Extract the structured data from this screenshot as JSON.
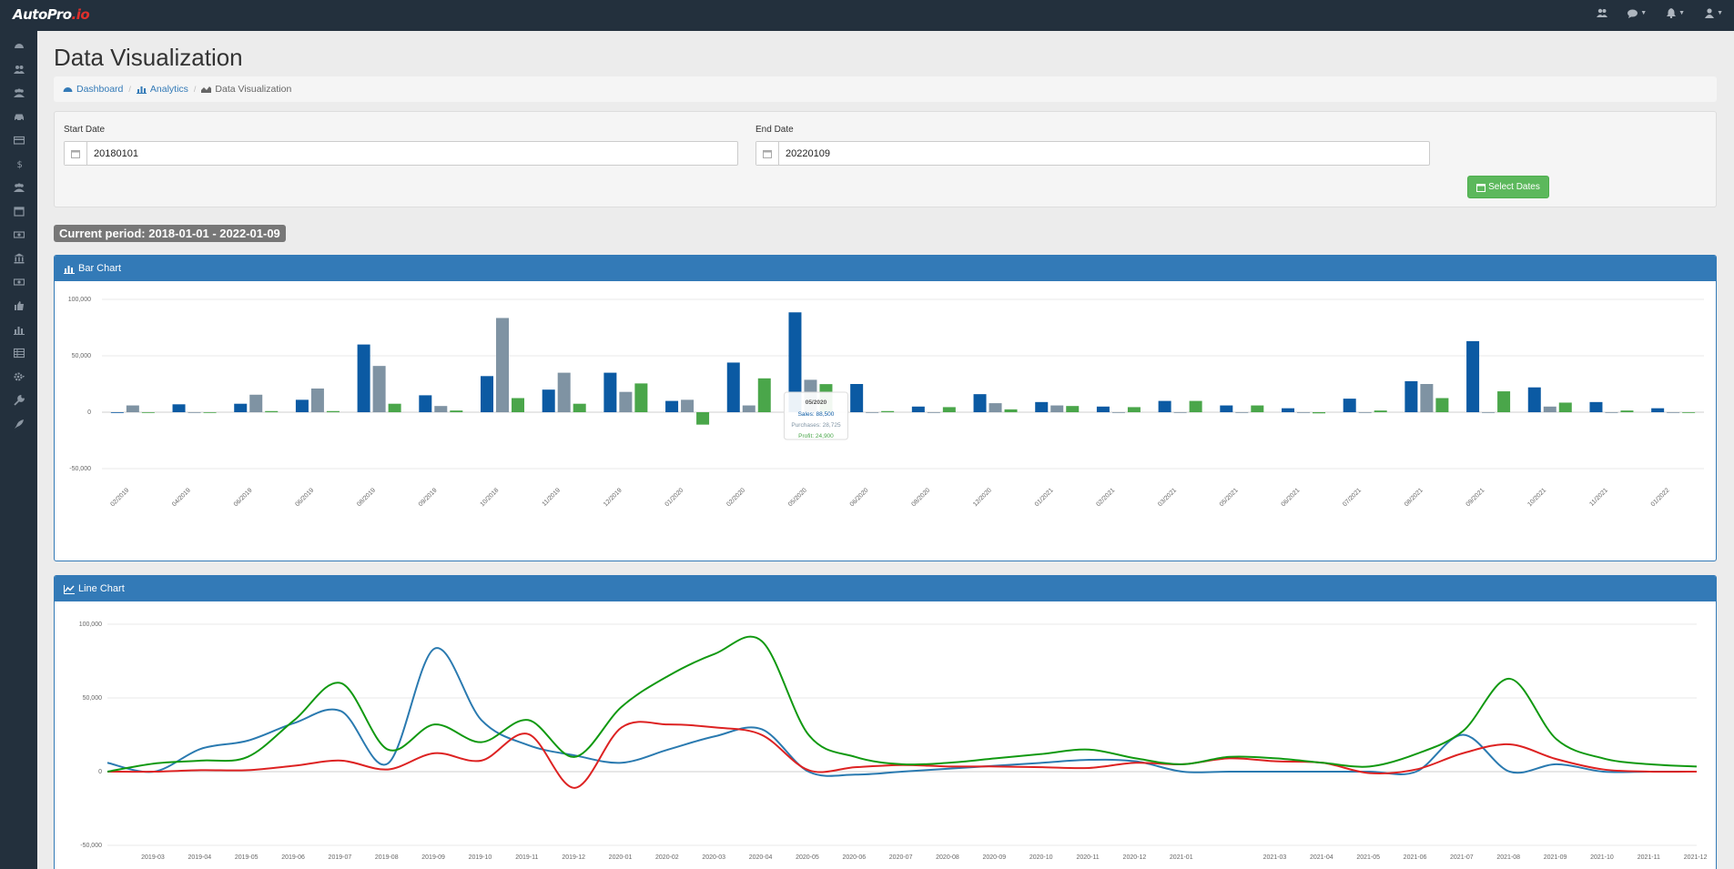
{
  "app": {
    "logo_main": "AutoPro",
    "logo_accent": ".io"
  },
  "topbar": {
    "icons": [
      "users-icon",
      "chat-icon",
      "bell-icon",
      "user-icon"
    ]
  },
  "sidebar": {
    "icons": [
      "dashboard-icon",
      "users-icon",
      "group-icon",
      "car-icon",
      "card-icon",
      "dollar-icon",
      "group-icon",
      "calendar-icon",
      "money-icon",
      "bank-icon",
      "money-icon",
      "thumbs-up-icon",
      "bar-chart-icon",
      "table-icon",
      "gear-icon",
      "wrench-icon",
      "rocket-icon"
    ]
  },
  "page": {
    "title": "Data Visualization",
    "breadcrumb": [
      "Dashboard",
      "Analytics",
      "Data Visualization"
    ]
  },
  "filters": {
    "start_label": "Start Date",
    "start_value": "20180101",
    "end_label": "End Date",
    "end_value": "20220109",
    "select_button": "Select Dates"
  },
  "period": {
    "text": "Current period: 2018-01-01 - 2022-01-09"
  },
  "colors": {
    "primary": "#337ab7",
    "success": "#5cb85c",
    "sidebar": "#23303d",
    "bar_sales": "#0b5aa3",
    "bar_purchases": "#7f93a3",
    "bar_profit": "#4aa64a",
    "line_sales": "#2a7ab0",
    "line_purchases": "#dd2222",
    "line_profit": "#119911"
  },
  "bar_chart": {
    "title": "Bar Chart",
    "tooltip": {
      "title": "05/2020",
      "lines": [
        "Sales: 88,500",
        "Purchases: 28,725",
        "Profit: 24,900"
      ]
    }
  },
  "line_chart": {
    "title": "Line Chart"
  },
  "chart_data": [
    {
      "type": "bar",
      "title": "Bar Chart",
      "ylim": [
        -50000,
        100000
      ],
      "y_ticks": [
        "100,000",
        "50,000",
        "0",
        "-50,000"
      ],
      "x_labels": [
        "02/2019",
        "04/2019",
        "06/2019",
        "06/2019",
        "08/2019",
        "09/2019",
        "10/2018",
        "11/2019",
        "12/2019",
        "01/2020",
        "02/2020",
        "05/2020",
        "06/2020",
        "08/2020",
        "12/2020",
        "01/2021",
        "02/2021",
        "03/2021",
        "05/2021",
        "06/2021",
        "07/2021",
        "08/2021",
        "09/2021",
        "10/2021",
        "11/2021",
        "01/2022"
      ],
      "series": [
        {
          "name": "Sales",
          "values": [
            0,
            7000,
            7500,
            11000,
            60000,
            15000,
            32000,
            20000,
            35000,
            10000,
            44000,
            88500,
            25000,
            5000,
            16000,
            9000,
            5000,
            10000,
            6000,
            3500,
            12000,
            27500,
            63000,
            22000,
            9000,
            3500
          ]
        },
        {
          "name": "Purchases",
          "values": [
            6000,
            0,
            15500,
            21000,
            41000,
            5500,
            83500,
            35000,
            18000,
            11000,
            6000,
            28725,
            0,
            0,
            8000,
            6000,
            0,
            0,
            0,
            0,
            0,
            25000,
            0,
            5000,
            0,
            0
          ]
        },
        {
          "name": "Profit",
          "values": [
            0,
            0,
            1000,
            1000,
            7500,
            1500,
            12500,
            7500,
            25500,
            -11000,
            30000,
            24900,
            1000,
            4500,
            2500,
            5500,
            4500,
            10000,
            6000,
            -1000,
            1500,
            12500,
            18500,
            8500,
            1500,
            0
          ]
        }
      ]
    },
    {
      "type": "line",
      "title": "Line Chart",
      "ylim": [
        -50000,
        100000
      ],
      "y_ticks": [
        "100,000",
        "50,000",
        "0",
        "-50,000"
      ],
      "x": [
        "2019-03",
        "2019-04",
        "2019-05",
        "2019-06",
        "2019-07",
        "2019-08",
        "2019-09",
        "2019-10",
        "2019-11",
        "2019-12",
        "2020-01",
        "2020-02",
        "2020-03",
        "2020-04",
        "2020-05",
        "2020-06",
        "2020-07",
        "2020-08",
        "2020-09",
        "2020-10",
        "2020-11",
        "2020-12",
        "2021-01",
        "",
        "2021-03",
        "2021-04",
        "2021-05",
        "2021-06",
        "2021-07",
        "2021-08",
        "2021-09",
        "2021-10",
        "2021-11",
        "2021-12",
        "2022-01"
      ],
      "series": [
        {
          "name": "Sales",
          "values": [
            6000,
            0,
            15500,
            21000,
            33000,
            41000,
            5500,
            83500,
            35000,
            18000,
            11000,
            6000,
            15000,
            24000,
            28725,
            0,
            -2000,
            0,
            2000,
            4000,
            6000,
            8000,
            7000,
            0,
            0,
            0,
            0,
            0,
            0,
            25000,
            0,
            5000,
            0,
            0,
            0
          ]
        },
        {
          "name": "Purchases",
          "values": [
            0,
            0,
            1000,
            1000,
            4000,
            7500,
            1500,
            12500,
            7500,
            25500,
            -11000,
            30000,
            32000,
            30000,
            24900,
            1000,
            3000,
            4500,
            3500,
            3500,
            3000,
            2500,
            6000,
            5000,
            9000,
            7000,
            6000,
            -1000,
            1500,
            12500,
            18500,
            8500,
            1500,
            0,
            0
          ]
        },
        {
          "name": "Profit",
          "values": [
            0,
            5500,
            7500,
            10000,
            35000,
            60000,
            15000,
            32000,
            20000,
            35000,
            10000,
            44000,
            65000,
            80000,
            88500,
            25000,
            10000,
            5000,
            6000,
            9000,
            12000,
            15000,
            9000,
            5000,
            10000,
            9000,
            6000,
            3500,
            12000,
            27500,
            63000,
            22000,
            9000,
            5000,
            3500
          ]
        }
      ]
    }
  ]
}
